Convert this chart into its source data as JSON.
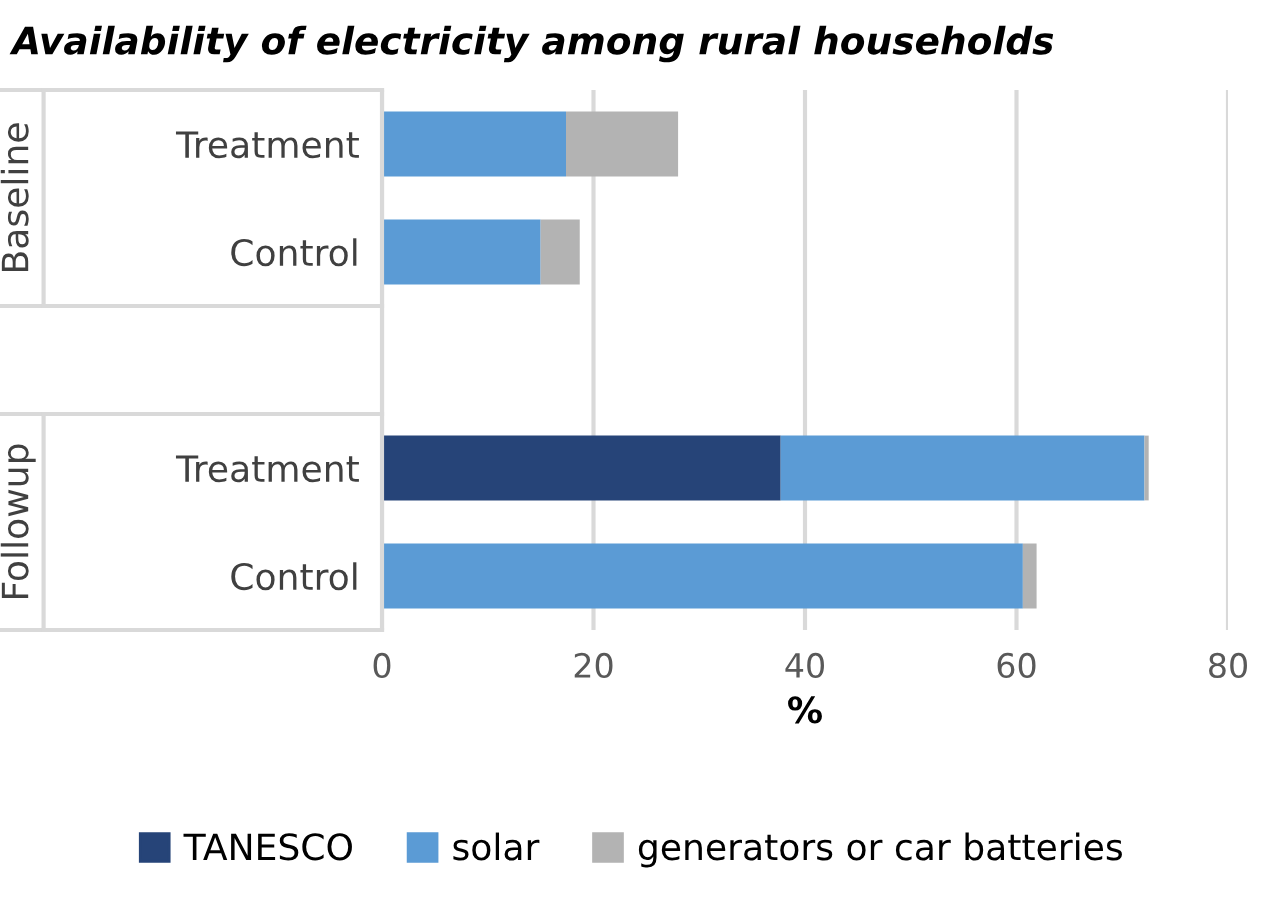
{
  "chart_data": {
    "type": "bar",
    "orientation": "horizontal",
    "stacked": true,
    "title": "Availability of electricity among rural households",
    "categories": [
      "Treatment",
      "Control",
      null,
      "Treatment",
      "Control"
    ],
    "annotations": [
      "Baseline",
      "Followup"
    ],
    "series": [
      {
        "name": "TANESCO",
        "color": "#264478",
        "values": [
          0,
          0,
          null,
          37.7,
          0
        ]
      },
      {
        "name": "solar",
        "color": "#5b9bd5",
        "values": [
          17.4,
          15.0,
          null,
          34.4,
          60.6
        ]
      },
      {
        "name": "generators or car batteries",
        "color": "#b3b3b3",
        "values": [
          10.6,
          3.7,
          null,
          0.4,
          1.3
        ]
      }
    ],
    "xlabel": "%",
    "xlim": [
      0,
      80
    ],
    "xticks": [
      0,
      20,
      40,
      60,
      80
    ],
    "grid": "x",
    "legend": "bottom"
  }
}
